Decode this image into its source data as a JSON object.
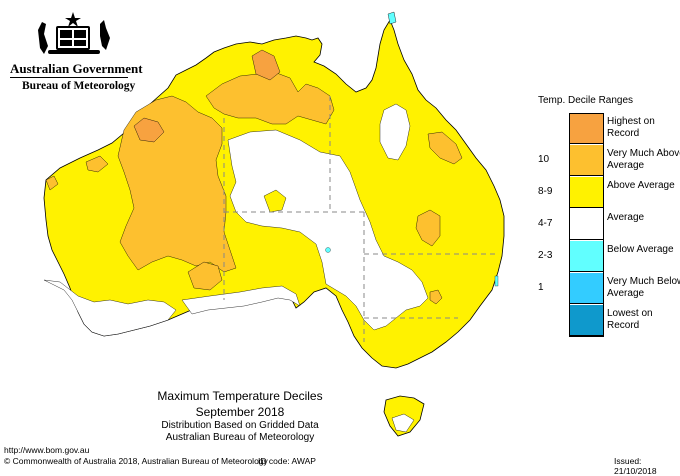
{
  "header": {
    "government": "Australian Government",
    "bureau": "Bureau of Meteorology"
  },
  "legend": {
    "title": "Temp. Decile Ranges",
    "items": [
      {
        "range": "",
        "label": "Highest on Record",
        "color": "#f7a240"
      },
      {
        "range": "10",
        "label": "Very Much Above Average",
        "color": "#fdc02f"
      },
      {
        "range": "8-9",
        "label": "Above Average",
        "color": "#fff200"
      },
      {
        "range": "4-7",
        "label": "Average",
        "color": "#ffffff"
      },
      {
        "range": "2-3",
        "label": "Below Average",
        "color": "#61ffff"
      },
      {
        "range": "1",
        "label": "Very Much Below Average",
        "color": "#33ccff"
      },
      {
        "range": "",
        "label": "Lowest on Record",
        "color": "#0f99cc"
      }
    ]
  },
  "caption": {
    "title": "Maximum Temperature Deciles",
    "period": "September 2018",
    "line3": "Distribution Based on Gridded Data",
    "line4": "Australian Bureau of Meteorology"
  },
  "footer": {
    "url": "http://www.bom.gov.au",
    "copyright": "© Commonwealth of Australia 2018, Australian Bureau of Meteorology",
    "id_code": "ID code: AWAP",
    "issued": "Issued: 21/10/2018"
  },
  "colors": {
    "outline": "#000000",
    "border_dash": "#888888"
  }
}
